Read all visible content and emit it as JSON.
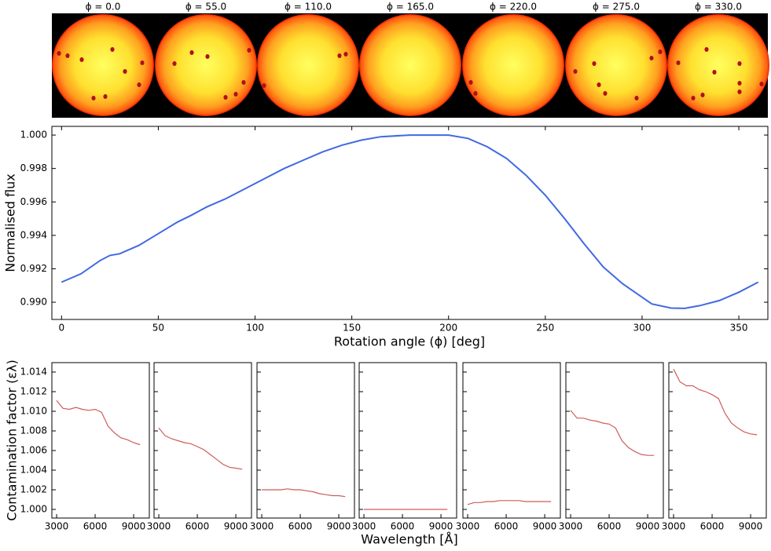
{
  "star_titles": [
    "ϕ = 0.0",
    "ϕ = 55.0",
    "ϕ = 110.0",
    "ϕ = 165.0",
    "ϕ = 220.0",
    "ϕ = 275.0",
    "ϕ = 330.0"
  ],
  "chart_data": [
    {
      "type": "line",
      "xlabel": "Rotation angle (ϕ) [deg]",
      "ylabel": "Normalised flux",
      "x": [
        0,
        10,
        20,
        25,
        30,
        40,
        50,
        60,
        67,
        75,
        85,
        95,
        105,
        115,
        125,
        135,
        145,
        155,
        165,
        180,
        200,
        210,
        220,
        230,
        240,
        250,
        260,
        270,
        280,
        290,
        300,
        305,
        315,
        322,
        330,
        340,
        350,
        360
      ],
      "series": [
        {
          "color": "#4169e1",
          "values": [
            0.9912,
            0.9917,
            0.9925,
            0.9928,
            0.9929,
            0.9934,
            0.9941,
            0.9948,
            0.9952,
            0.9957,
            0.9962,
            0.9968,
            0.9974,
            0.998,
            0.9985,
            0.999,
            0.9994,
            0.9997,
            0.9999,
            1.0,
            1.0,
            0.9998,
            0.9993,
            0.9986,
            0.9976,
            0.9964,
            0.995,
            0.9935,
            0.9921,
            0.9911,
            0.9903,
            0.9899,
            0.98965,
            0.98963,
            0.9898,
            0.9901,
            0.9906,
            0.9912
          ]
        }
      ],
      "xlim": [
        -5,
        365
      ],
      "ylim": [
        0.98897,
        1.00052
      ],
      "xticks": [
        0,
        50,
        100,
        150,
        200,
        250,
        300,
        350
      ],
      "yticks": [
        {
          "value": 0.99,
          "label": "0.990"
        },
        0.992,
        0.994,
        0.996,
        0.998,
        {
          "value": 1,
          "label": "1.000"
        }
      ]
    },
    {
      "type": "line-panels",
      "xlabel": "Wavelength [Å]",
      "ylabel": "Contamination factor (ελ)",
      "x": [
        3000,
        3500,
        4000,
        4500,
        5000,
        5500,
        6000,
        6500,
        7000,
        7500,
        8000,
        8500,
        9000,
        9500
      ],
      "series": [
        {
          "color": "#cd5c5c",
          "values": [
            1.0111,
            1.0103,
            1.0102,
            1.0104,
            1.0102,
            1.0101,
            1.0102,
            1.0099,
            1.0085,
            1.0078,
            1.0073,
            1.0071,
            1.0068,
            1.0066
          ]
        },
        {
          "color": "#cd5c5c",
          "values": [
            1.0083,
            1.0075,
            1.0072,
            1.007,
            1.0068,
            1.0067,
            1.0064,
            1.0061,
            1.0056,
            1.0051,
            1.0046,
            1.0043,
            1.0042,
            1.0041
          ]
        },
        {
          "color": "#cd5c5c",
          "values": [
            1.002,
            1.002,
            1.002,
            1.002,
            1.0021,
            1.002,
            1.002,
            1.0019,
            1.0018,
            1.0016,
            1.0015,
            1.0014,
            1.0014,
            1.0013
          ]
        },
        {
          "color": "#cd5c5c",
          "values": [
            1.0,
            1.0,
            1.0,
            1.0,
            1.0,
            1.0,
            1.0,
            1.0,
            1.0,
            1.0,
            1.0,
            1.0,
            1.0,
            1.0
          ]
        },
        {
          "color": "#cd5c5c",
          "values": [
            1.0005,
            1.0007,
            1.0007,
            1.0008,
            1.0008,
            1.0009,
            1.0009,
            1.0009,
            1.0009,
            1.0008,
            1.0008,
            1.0008,
            1.0008,
            1.0008
          ]
        },
        {
          "color": "#cd5c5c",
          "values": [
            1.0101,
            1.0093,
            1.0093,
            1.0091,
            1.009,
            1.0088,
            1.0087,
            1.0083,
            1.007,
            1.0063,
            1.0059,
            1.0056,
            1.0055,
            1.0055
          ]
        },
        {
          "color": "#cd5c5c",
          "values": [
            1.0143,
            1.013,
            1.0126,
            1.0126,
            1.0122,
            1.012,
            1.0117,
            1.0113,
            1.0098,
            1.0088,
            1.0083,
            1.0079,
            1.0077,
            1.0076
          ]
        }
      ],
      "xlim": [
        2630,
        10220
      ],
      "ylim": [
        0.99912,
        1.01496
      ],
      "xticks": [
        3000,
        6000,
        9000
      ],
      "yticks": [
        {
          "value": 1,
          "label": "1.000"
        },
        1.002,
        1.004,
        1.006,
        1.008,
        {
          "value": 1.01,
          "label": "1.010"
        },
        1.012,
        1.014
      ]
    }
  ]
}
